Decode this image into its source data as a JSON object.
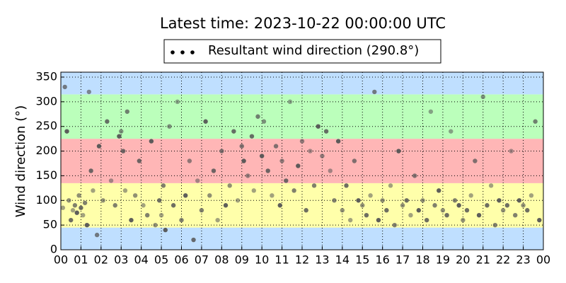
{
  "chart_data": {
    "type": "scatter",
    "title": "Latest time: 2023-10-22 00:00:00 UTC",
    "y_label": "Wind direction (°)",
    "xlim": [
      0,
      24
    ],
    "ylim": [
      0,
      360
    ],
    "xticks": [
      {
        "value": 0,
        "label": "00"
      },
      {
        "value": 1,
        "label": "01"
      },
      {
        "value": 2,
        "label": "02"
      },
      {
        "value": 3,
        "label": "03"
      },
      {
        "value": 4,
        "label": "04"
      },
      {
        "value": 5,
        "label": "05"
      },
      {
        "value": 6,
        "label": "06"
      },
      {
        "value": 7,
        "label": "07"
      },
      {
        "value": 8,
        "label": "08"
      },
      {
        "value": 9,
        "label": "09"
      },
      {
        "value": 10,
        "label": "10"
      },
      {
        "value": 11,
        "label": "11"
      },
      {
        "value": 12,
        "label": "12"
      },
      {
        "value": 13,
        "label": "13"
      },
      {
        "value": 14,
        "label": "14"
      },
      {
        "value": 15,
        "label": "15"
      },
      {
        "value": 16,
        "label": "16"
      },
      {
        "value": 17,
        "label": "17"
      },
      {
        "value": 18,
        "label": "18"
      },
      {
        "value": 19,
        "label": "19"
      },
      {
        "value": 20,
        "label": "20"
      },
      {
        "value": 21,
        "label": "21"
      },
      {
        "value": 22,
        "label": "22"
      },
      {
        "value": 23,
        "label": "23"
      },
      {
        "value": 24,
        "label": "00"
      }
    ],
    "yticks": [
      0,
      50,
      100,
      150,
      200,
      250,
      300,
      350
    ],
    "grid": true,
    "bands": [
      {
        "from": 0,
        "to": 45,
        "color": "#bfdfff"
      },
      {
        "from": 45,
        "to": 135,
        "color": "#ffffaa"
      },
      {
        "from": 135,
        "to": 225,
        "color": "#ffb6b6"
      },
      {
        "from": 225,
        "to": 315,
        "color": "#bbffbb"
      },
      {
        "from": 315,
        "to": 360,
        "color": "#bfdfff"
      }
    ],
    "x": [
      0.1,
      0.2,
      0.3,
      0.4,
      0.5,
      0.6,
      0.7,
      0.8,
      0.9,
      1.0,
      1.1,
      1.2,
      1.3,
      1.4,
      1.5,
      1.6,
      1.8,
      1.9,
      2.1,
      2.3,
      2.5,
      2.7,
      2.9,
      3.0,
      3.1,
      3.2,
      3.3,
      3.5,
      3.7,
      3.9,
      4.1,
      4.3,
      4.5,
      4.7,
      4.9,
      5.0,
      5.1,
      5.2,
      5.4,
      5.6,
      5.8,
      6.0,
      6.2,
      6.4,
      6.6,
      6.8,
      7.0,
      7.2,
      7.4,
      7.6,
      7.8,
      8.0,
      8.2,
      8.4,
      8.6,
      8.8,
      9.0,
      9.1,
      9.3,
      9.5,
      9.6,
      9.8,
      10.0,
      10.1,
      10.3,
      10.5,
      10.7,
      10.9,
      11.0,
      11.2,
      11.4,
      11.6,
      11.8,
      12.0,
      12.2,
      12.4,
      12.6,
      12.8,
      13.0,
      13.2,
      13.4,
      13.6,
      13.8,
      14.0,
      14.2,
      14.4,
      14.6,
      14.8,
      15.0,
      15.2,
      15.4,
      15.6,
      15.8,
      16.0,
      16.2,
      16.4,
      16.6,
      16.8,
      17.0,
      17.2,
      17.4,
      17.6,
      17.8,
      18.0,
      18.2,
      18.4,
      18.6,
      18.8,
      19.0,
      19.2,
      19.4,
      19.6,
      19.8,
      20.0,
      20.2,
      20.4,
      20.6,
      20.8,
      21.0,
      21.2,
      21.4,
      21.6,
      21.8,
      22.0,
      22.2,
      22.4,
      22.6,
      22.8,
      23.0,
      23.2,
      23.4,
      23.6,
      23.8
    ],
    "series": [
      {
        "name": "Resultant wind direction (290.8°)",
        "color": "#555555",
        "values": [
          85,
          330,
          240,
          100,
          60,
          80,
          90,
          75,
          110,
          85,
          70,
          95,
          50,
          320,
          160,
          120,
          30,
          210,
          100,
          260,
          140,
          90,
          230,
          240,
          200,
          120,
          280,
          60,
          110,
          180,
          90,
          70,
          220,
          50,
          100,
          70,
          130,
          40,
          250,
          90,
          300,
          60,
          110,
          180,
          20,
          140,
          80,
          260,
          110,
          160,
          60,
          200,
          90,
          130,
          240,
          100,
          210,
          180,
          150,
          230,
          120,
          270,
          190,
          260,
          160,
          110,
          210,
          90,
          180,
          140,
          300,
          120,
          170,
          220,
          80,
          200,
          130,
          250,
          190,
          240,
          160,
          100,
          220,
          80,
          130,
          60,
          180,
          100,
          90,
          70,
          110,
          320,
          60,
          100,
          80,
          130,
          50,
          200,
          90,
          100,
          70,
          150,
          80,
          100,
          60,
          280,
          90,
          120,
          80,
          70,
          240,
          100,
          90,
          60,
          80,
          110,
          180,
          70,
          310,
          90,
          130,
          50,
          100,
          80,
          90,
          200,
          70,
          100,
          90,
          80,
          110,
          260,
          60
        ]
      }
    ]
  }
}
